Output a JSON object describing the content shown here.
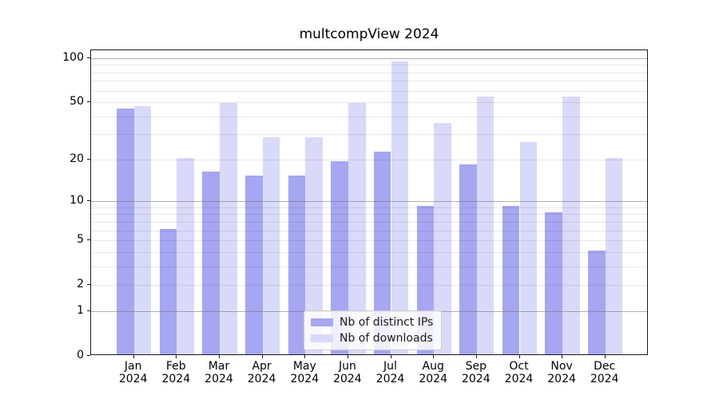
{
  "title": "multcompView 2024",
  "colors": {
    "ips_bar": "#a6a6f1",
    "downloads_bar": "#d9d9fa",
    "grid_major": "#6e6e6e",
    "grid_minor": "#e9e9e9",
    "spine": "#1a1a1a",
    "legend_border": "#cccccc"
  },
  "legend": {
    "items": [
      {
        "label": "Nb of distinct IPs",
        "series": "ips"
      },
      {
        "label": "Nb of downloads",
        "series": "downloads"
      }
    ]
  },
  "chart_data": {
    "type": "bar",
    "title": "multcompView 2024",
    "categories": [
      "Jan 2024",
      "Feb 2024",
      "Mar 2024",
      "Apr 2024",
      "May 2024",
      "Jun 2024",
      "Jul 2024",
      "Aug 2024",
      "Sep 2024",
      "Oct 2024",
      "Nov 2024",
      "Dec 2024"
    ],
    "x_tick_line1": [
      "Jan",
      "Feb",
      "Mar",
      "Apr",
      "May",
      "Jun",
      "Jul",
      "Aug",
      "Sep",
      "Oct",
      "Nov",
      "Dec"
    ],
    "x_tick_line2": [
      "2024",
      "2024",
      "2024",
      "2024",
      "2024",
      "2024",
      "2024",
      "2024",
      "2024",
      "2024",
      "2024",
      "2024"
    ],
    "series": [
      {
        "name": "Nb of distinct IPs",
        "color": "#a6a6f1",
        "values": [
          44,
          6,
          16,
          15,
          15,
          19,
          22,
          9,
          18,
          9,
          8,
          4
        ]
      },
      {
        "name": "Nb of downloads",
        "color": "#d9d9fa",
        "values": [
          46,
          20,
          48,
          28,
          28,
          48,
          93,
          35,
          53,
          26,
          53,
          20
        ]
      }
    ],
    "xlabel": "",
    "ylabel": "",
    "yscale": "log1p",
    "y_ticks": [
      0,
      1,
      2,
      5,
      10,
      20,
      50,
      100
    ],
    "grid_major_values": [
      1,
      10,
      100
    ],
    "grid_minor_values": [
      2,
      3,
      4,
      5,
      6,
      7,
      8,
      9,
      20,
      30,
      40,
      50,
      60,
      70,
      80,
      90
    ],
    "ylim": [
      0,
      113
    ],
    "grid": "on",
    "legend_position": "lower center"
  }
}
